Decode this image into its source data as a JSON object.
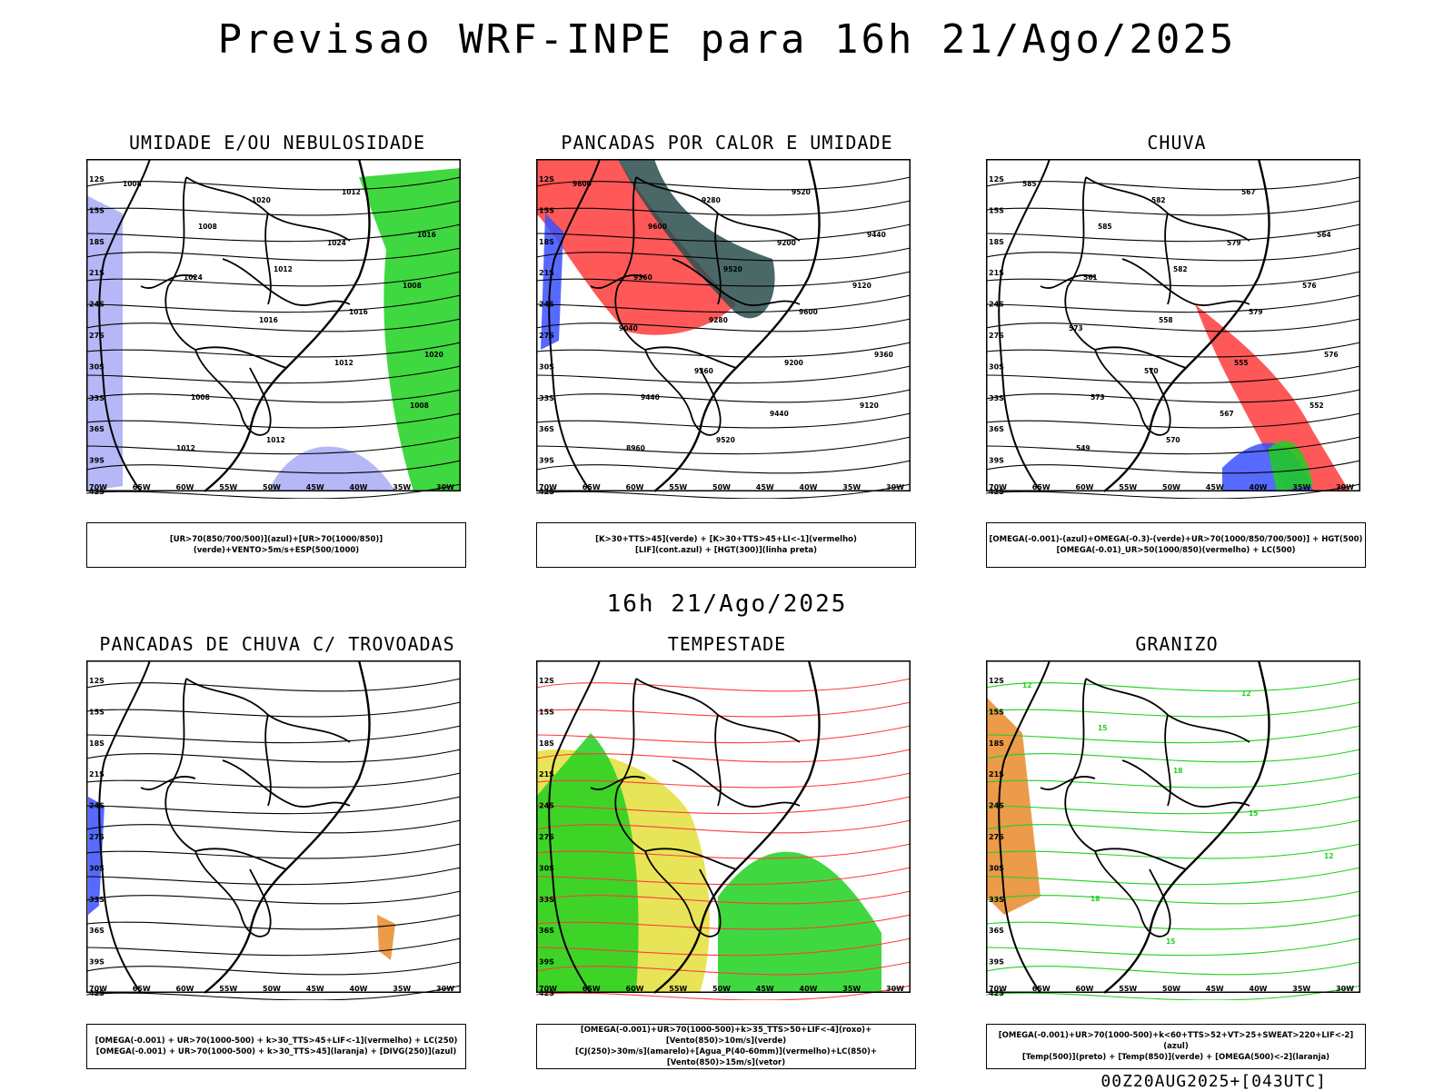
{
  "header": {
    "title": "Previsao WRF-INPE  para 16h 21/Ago/2025",
    "subtitle": "16h 21/Ago/2025",
    "footer": "00Z20AUG2025+[043UTC]"
  },
  "axes": {
    "lat_labels": [
      "12S",
      "15S",
      "18S",
      "21S",
      "24S",
      "27S",
      "30S",
      "33S",
      "36S",
      "39S",
      "42S"
    ],
    "lon_labels": [
      "70W",
      "65W",
      "60W",
      "55W",
      "50W",
      "45W",
      "40W",
      "35W",
      "30W"
    ]
  },
  "colors": {
    "red": "#ff3b3b",
    "green": "#1fd11f",
    "blue": "#3a50ff",
    "lightblue": "#a9aaf5",
    "teal": "#2a4d4d",
    "yellow": "#e3df3a",
    "orange": "#e88a2a"
  },
  "panels": [
    {
      "title": "UMIDADE E/OU NEBULOSIDADE",
      "legend": [
        "[UR>70(850/700/500)](azul)+[UR>70(1000/850)](verde)+VENTO>5m/s+ESP(500/1000)"
      ],
      "contour_labels": [
        "1008",
        "1008",
        "1012",
        "1016",
        "1020",
        "1008",
        "1012",
        "1012",
        "1016",
        "1024",
        "1016",
        "1012",
        "1008",
        "1012",
        "1020",
        "1024",
        "1008"
      ]
    },
    {
      "title": "PANCADAS POR CALOR E UMIDADE",
      "legend": [
        "[K>30+TTS>45](verde) + [K>30+TTS>45+LI<-1](vermelho)",
        "[LIF](cont.azul) + [HGT(300)](linha preta)"
      ],
      "contour_labels": [
        "9600",
        "9600",
        "9520",
        "9600",
        "9360",
        "9440",
        "9520",
        "9520",
        "9440",
        "9360",
        "9280",
        "9200",
        "9120",
        "8960",
        "9280",
        "9200",
        "9120",
        "9040",
        "9360",
        "9440"
      ]
    },
    {
      "title": "CHUVA",
      "legend": [
        "[OMEGA(-0.001)-(azul)+OMEGA(-0.3)-(verde)+UR>70(1000/850/700/500)] + HGT(500)",
        "[OMEGA(-0.01)_UR>50(1000/850)(vermelho) + LC(500)"
      ],
      "contour_labels": [
        "585",
        "585",
        "582",
        "579",
        "576",
        "573",
        "570",
        "567",
        "564",
        "561",
        "558",
        "555",
        "552",
        "549",
        "582",
        "579",
        "576",
        "573",
        "570",
        "567"
      ]
    },
    {
      "title": "PANCADAS DE CHUVA C/ TROVOADAS",
      "legend": [
        "[OMEGA(-0.001) + UR>70(1000-500) + k>30_TTS>45+LIF<-1](vermelho) + LC(250)",
        "[OMEGA(-0.001) + UR>70(1000-500) + k>30_TTS>45](laranja) + [DIVG(250)](azul)"
      ],
      "contour_labels": []
    },
    {
      "title": "TEMPESTADE",
      "legend": [
        "[OMEGA(-0.001)+UR>70(1000-500)+k>35_TTS>50+LIF<-4](roxo)+[Vento(850)>10m/s](verde)",
        "[CJ(250)>30m/s](amarelo)+[Agua_P(40-60mm)](vermelho)+LC(850)+[Vento(850)>15m/s](vetor)"
      ],
      "contour_labels": []
    },
    {
      "title": "GRANIZO",
      "legend": [
        "[OMEGA(-0.001)+UR>70(1000-500)+k<60+TTS>52+VT>25+SWEAT>220+LIF<-2](azul)",
        "[Temp(500)](preto) + [Temp(850)](verde) + [OMEGA(500)<-2](laranja)"
      ],
      "contour_labels": [
        "12",
        "15",
        "18",
        "15",
        "12",
        "18",
        "15",
        "12"
      ]
    }
  ]
}
